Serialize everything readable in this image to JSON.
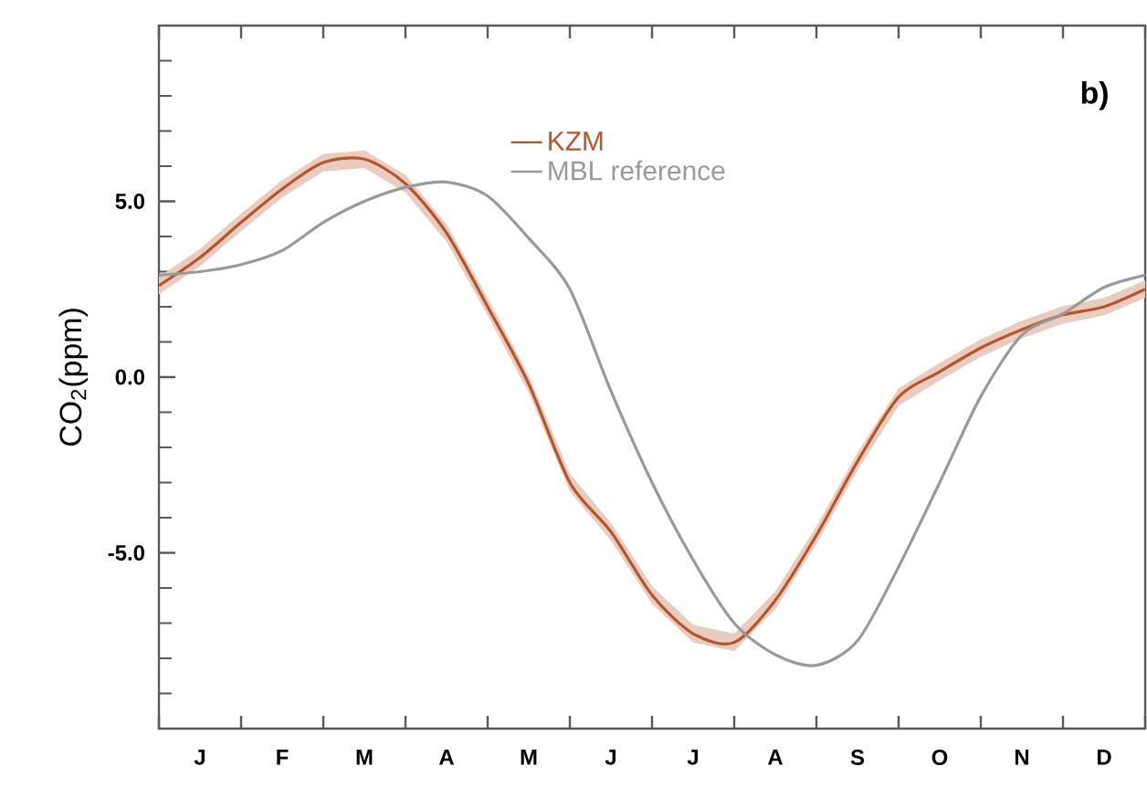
{
  "chart_data": {
    "type": "line",
    "ylabel": "CO$_{2}$(ppm)",
    "annotations": [
      "b)"
    ],
    "legend": "top",
    "categories": [
      null,
      "J",
      null,
      "F",
      null,
      "M",
      null,
      "A",
      null,
      "M",
      null,
      "J",
      null,
      "J",
      null,
      "A",
      null,
      "S",
      null,
      "O",
      null,
      "N",
      null,
      "D",
      null
    ],
    "series": [
      {
        "name": "KZM",
        "color": "#b5562a",
        "values": [
          2.6,
          3.4,
          4.4,
          5.35,
          6.1,
          6.2,
          5.5,
          4.1,
          2.0,
          -0.2,
          -3.0,
          -4.4,
          -6.2,
          -7.3,
          -7.55,
          -6.35,
          -4.5,
          -2.4,
          -0.57,
          0.15,
          0.83,
          1.35,
          1.77,
          2.0,
          2.5
        ],
        "lower": [
          2.35,
          3.15,
          4.15,
          5.1,
          5.85,
          5.95,
          5.25,
          3.85,
          1.75,
          -0.45,
          -3.25,
          -4.65,
          -6.45,
          -7.55,
          -7.8,
          -6.6,
          -4.75,
          -2.65,
          -0.82,
          -0.1,
          0.58,
          1.1,
          1.52,
          1.75,
          2.25
        ],
        "upper": [
          2.85,
          3.65,
          4.65,
          5.6,
          6.35,
          6.45,
          5.75,
          4.35,
          2.25,
          0.05,
          -2.75,
          -4.15,
          -5.95,
          -7.05,
          -7.3,
          -6.1,
          -4.25,
          -2.15,
          -0.32,
          0.4,
          1.08,
          1.6,
          2.02,
          2.25,
          2.75
        ]
      },
      {
        "name": "MBL reference",
        "color": "#999999",
        "values": [
          2.9,
          3.0,
          3.2,
          3.6,
          4.4,
          5.0,
          5.4,
          5.55,
          5.15,
          3.95,
          2.5,
          -0.4,
          -3.0,
          -5.2,
          -7.0,
          -7.9,
          -8.2,
          -7.5,
          -5.4,
          -3.0,
          -0.55,
          1.2,
          1.8,
          2.55,
          2.9
        ]
      }
    ],
    "ylim": [
      -10,
      10
    ],
    "yticks": [
      {
        "value": 5,
        "label": "5.0"
      },
      {
        "value": 0,
        "label": "0.0"
      },
      {
        "value": -5,
        "label": "-5.0"
      },
      {
        "value": -9,
        "label": null
      },
      {
        "value": -8,
        "label": null
      },
      {
        "value": -7,
        "label": null
      },
      {
        "value": -6,
        "label": null
      },
      {
        "value": -4,
        "label": null
      },
      {
        "value": -3,
        "label": null
      },
      {
        "value": -2,
        "label": null
      },
      {
        "value": -1,
        "label": null
      },
      {
        "value": 1,
        "label": null
      },
      {
        "value": 2,
        "label": null
      },
      {
        "value": 3,
        "label": null
      },
      {
        "value": 4,
        "label": null
      },
      {
        "value": 6,
        "label": null
      },
      {
        "value": 7,
        "label": null
      },
      {
        "value": 8,
        "label": null
      },
      {
        "value": 9,
        "label": null
      }
    ]
  }
}
